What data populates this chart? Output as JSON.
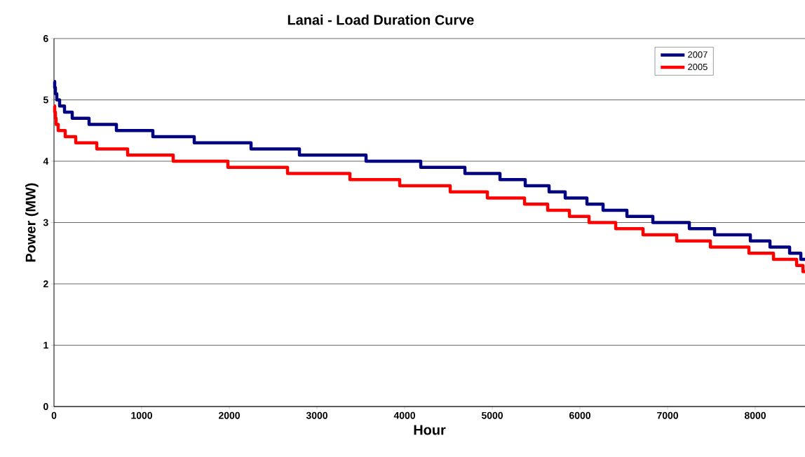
{
  "chart_data": {
    "type": "step",
    "title": "Lanai - Load Duration Curve",
    "xlabel": "Hour",
    "ylabel": "Power (MW)",
    "xlim": [
      0,
      8568
    ],
    "ylim": [
      0,
      6
    ],
    "xticks": [
      0,
      1000,
      2000,
      3000,
      4000,
      5000,
      6000,
      7000,
      8000
    ],
    "yticks": [
      0,
      1,
      2,
      3,
      4,
      5,
      6
    ],
    "grid": "y",
    "legend": "top right",
    "line_style": "solid",
    "marker": "none",
    "series": [
      {
        "name": "2007",
        "color": "#000080",
        "x": [
          0,
          8,
          16,
          32,
          64,
          120,
          208,
          400,
          712,
          1128,
          1600,
          2248,
          2800,
          3560,
          4184,
          4688,
          5088,
          5376,
          5648,
          5832,
          6080,
          6264,
          6536,
          6832,
          7248,
          7536,
          7944,
          8168,
          8392,
          8520,
          8568
        ],
        "values": [
          5.3,
          5.2,
          5.1,
          5.0,
          4.9,
          4.8,
          4.7,
          4.6,
          4.5,
          4.4,
          4.3,
          4.2,
          4.1,
          4.0,
          3.9,
          3.8,
          3.7,
          3.6,
          3.5,
          3.4,
          3.3,
          3.2,
          3.1,
          3.0,
          2.9,
          2.8,
          2.7,
          2.6,
          2.5,
          2.4,
          2.4
        ]
      },
      {
        "name": "2005",
        "color": "#ff0000",
        "x": [
          0,
          8,
          16,
          24,
          48,
          128,
          248,
          488,
          840,
          1360,
          1984,
          2664,
          3376,
          3944,
          4520,
          4944,
          5368,
          5632,
          5880,
          6104,
          6408,
          6720,
          7104,
          7488,
          7928,
          8208,
          8472,
          8544,
          8568
        ],
        "values": [
          4.9,
          4.8,
          4.7,
          4.6,
          4.5,
          4.4,
          4.3,
          4.2,
          4.1,
          4.0,
          3.9,
          3.8,
          3.7,
          3.6,
          3.5,
          3.4,
          3.3,
          3.2,
          3.1,
          3.0,
          2.9,
          2.8,
          2.7,
          2.6,
          2.5,
          2.4,
          2.3,
          2.2,
          2.2
        ]
      }
    ]
  }
}
